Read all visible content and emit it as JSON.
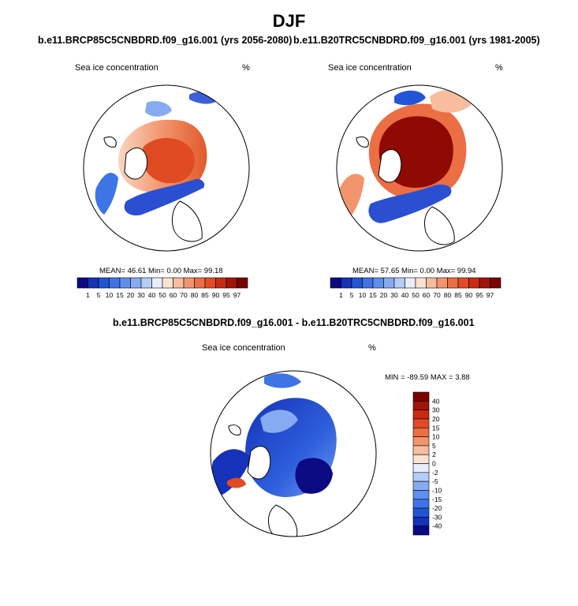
{
  "season": "DJF",
  "chart_data": [
    {
      "type": "heatmap",
      "projection": "north-polar-stereographic",
      "title": "b.e11.BRCP85C5CNBDRD.f09_g16.001 (yrs 2056-2080)",
      "variable": "Sea ice concentration",
      "units": "%",
      "stats_text": "MEAN=  46.61  Min=   0.00  Max=  99.18",
      "mean": 46.61,
      "min": 0.0,
      "max": 99.18,
      "colorbar_levels": [
        "1",
        "5",
        "10",
        "15",
        "20",
        "30",
        "40",
        "50",
        "60",
        "70",
        "80",
        "85",
        "90",
        "95",
        "97"
      ],
      "colorbar_orientation": "horizontal"
    },
    {
      "type": "heatmap",
      "projection": "north-polar-stereographic",
      "title": "b.e11.B20TRC5CNBDRD.f09_g16.001 (yrs 1981-2005)",
      "variable": "Sea ice concentration",
      "units": "%",
      "stats_text": "MEAN=  57.65  Min=   0.00  Max=  99.94",
      "mean": 57.65,
      "min": 0.0,
      "max": 99.94,
      "colorbar_levels": [
        "1",
        "5",
        "10",
        "15",
        "20",
        "30",
        "40",
        "50",
        "60",
        "70",
        "80",
        "85",
        "90",
        "95",
        "97"
      ],
      "colorbar_orientation": "horizontal"
    },
    {
      "type": "heatmap",
      "projection": "north-polar-stereographic",
      "title": "b.e11.BRCP85C5CNBDRD.f09_g16.001 - b.e11.B20TRC5CNBDRD.f09_g16.001",
      "variable": "Sea ice concentration",
      "units": "%",
      "stats_text": "MIN = -89.59 MAX =   3.88",
      "min": -89.59,
      "max": 3.88,
      "colorbar_levels": [
        "40",
        "30",
        "20",
        "15",
        "10",
        "5",
        "2",
        "0",
        "-2",
        "-5",
        "-10",
        "-15",
        "-20",
        "-30",
        "-40"
      ],
      "colorbar_orientation": "vertical"
    }
  ],
  "colors": {
    "seq_scale": [
      "#0b0a82",
      "#1532b8",
      "#2255d6",
      "#3e74e6",
      "#5e8fee",
      "#86abf2",
      "#b3cdf6",
      "#e8eefb",
      "#fbe3d3",
      "#f7bd9e",
      "#f2956c",
      "#ec6e44",
      "#e34a25",
      "#c92b12",
      "#a11408",
      "#7a0300"
    ],
    "div_scale": [
      "#7a0300",
      "#a11408",
      "#c92b12",
      "#e34a25",
      "#ec6e44",
      "#f2956c",
      "#f7bd9e",
      "#fbe3d3",
      "#e8eefb",
      "#b3cdf6",
      "#86abf2",
      "#5e8fee",
      "#3e74e6",
      "#2255d6",
      "#1532b8",
      "#0b0a82"
    ],
    "land": "#ffffff",
    "coast": "#000000"
  }
}
